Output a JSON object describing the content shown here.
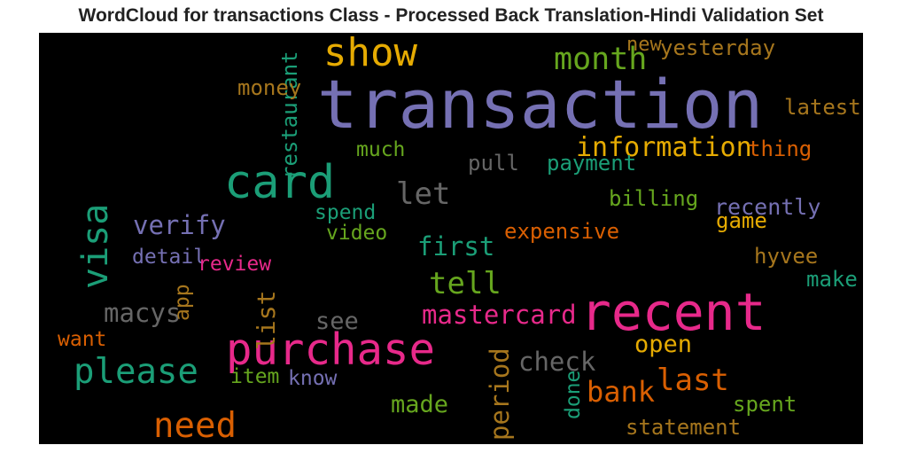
{
  "title": "WordCloud for transactions Class - Processed Back Translation-Hindi Validation Set",
  "chart_data": {
    "type": "wordcloud",
    "background": "#000000",
    "words": [
      {
        "text": "transaction",
        "weight": 1.0,
        "color": "#7570b3",
        "rotate": false
      },
      {
        "text": "recent",
        "weight": 0.72,
        "color": "#e7298a",
        "rotate": false
      },
      {
        "text": "card",
        "weight": 0.62,
        "color": "#1b9e77",
        "rotate": false
      },
      {
        "text": "purchase",
        "weight": 0.58,
        "color": "#e7298a",
        "rotate": false
      },
      {
        "text": "show",
        "weight": 0.5,
        "color": "#e6ab02",
        "rotate": false
      },
      {
        "text": "visa",
        "weight": 0.44,
        "color": "#1b9e77",
        "rotate": true
      },
      {
        "text": "please",
        "weight": 0.42,
        "color": "#1b9e77",
        "rotate": false
      },
      {
        "text": "need",
        "weight": 0.42,
        "color": "#d95f02",
        "rotate": false
      },
      {
        "text": "month",
        "weight": 0.36,
        "color": "#66a61e",
        "rotate": false
      },
      {
        "text": "let",
        "weight": 0.34,
        "color": "#666666",
        "rotate": false
      },
      {
        "text": "tell",
        "weight": 0.34,
        "color": "#66a61e",
        "rotate": false
      },
      {
        "text": "last",
        "weight": 0.34,
        "color": "#d95f02",
        "rotate": false
      },
      {
        "text": "bank",
        "weight": 0.32,
        "color": "#d95f02",
        "rotate": false
      },
      {
        "text": "information",
        "weight": 0.28,
        "color": "#e6ab02",
        "rotate": false
      },
      {
        "text": "first",
        "weight": 0.27,
        "color": "#1b9e77",
        "rotate": false
      },
      {
        "text": "verify",
        "weight": 0.27,
        "color": "#7570b3",
        "rotate": false
      },
      {
        "text": "macys",
        "weight": 0.27,
        "color": "#666666",
        "rotate": false
      },
      {
        "text": "mastercard",
        "weight": 0.26,
        "color": "#e7298a",
        "rotate": false
      },
      {
        "text": "check",
        "weight": 0.26,
        "color": "#666666",
        "rotate": false
      },
      {
        "text": "period",
        "weight": 0.26,
        "color": "#a6761d",
        "rotate": true
      },
      {
        "text": "list",
        "weight": 0.25,
        "color": "#a6761d",
        "rotate": true
      },
      {
        "text": "see",
        "weight": 0.24,
        "color": "#666666",
        "rotate": false
      },
      {
        "text": "open",
        "weight": 0.24,
        "color": "#e6ab02",
        "rotate": false
      },
      {
        "text": "made",
        "weight": 0.24,
        "color": "#66a61e",
        "rotate": false
      },
      {
        "text": "recently",
        "weight": 0.2,
        "color": "#7570b3",
        "rotate": false
      },
      {
        "text": "yesterday",
        "weight": 0.19,
        "color": "#a6761d",
        "rotate": false
      },
      {
        "text": "expensive",
        "weight": 0.19,
        "color": "#d95f02",
        "rotate": false
      },
      {
        "text": "latest",
        "weight": 0.19,
        "color": "#a6761d",
        "rotate": false
      },
      {
        "text": "restaurant",
        "weight": 0.19,
        "color": "#1b9e77",
        "rotate": true
      },
      {
        "text": "thing",
        "weight": 0.19,
        "color": "#d95f02",
        "rotate": false
      },
      {
        "text": "payment",
        "weight": 0.18,
        "color": "#1b9e77",
        "rotate": false
      },
      {
        "text": "pull",
        "weight": 0.18,
        "color": "#666666",
        "rotate": false
      },
      {
        "text": "billing",
        "weight": 0.18,
        "color": "#66a61e",
        "rotate": false
      },
      {
        "text": "game",
        "weight": 0.18,
        "color": "#e6ab02",
        "rotate": false
      },
      {
        "text": "hyvee",
        "weight": 0.18,
        "color": "#a6761d",
        "rotate": false
      },
      {
        "text": "make",
        "weight": 0.18,
        "color": "#1b9e77",
        "rotate": false
      },
      {
        "text": "statement",
        "weight": 0.18,
        "color": "#a6761d",
        "rotate": false
      },
      {
        "text": "spent",
        "weight": 0.18,
        "color": "#66a61e",
        "rotate": false
      },
      {
        "text": "money",
        "weight": 0.18,
        "color": "#a6761d",
        "rotate": false
      },
      {
        "text": "much",
        "weight": 0.17,
        "color": "#66a61e",
        "rotate": false
      },
      {
        "text": "spend",
        "weight": 0.17,
        "color": "#1b9e77",
        "rotate": false
      },
      {
        "text": "video",
        "weight": 0.17,
        "color": "#66a61e",
        "rotate": false
      },
      {
        "text": "detail",
        "weight": 0.17,
        "color": "#7570b3",
        "rotate": false
      },
      {
        "text": "review",
        "weight": 0.17,
        "color": "#e7298a",
        "rotate": false
      },
      {
        "text": "app",
        "weight": 0.17,
        "color": "#a6761d",
        "rotate": true
      },
      {
        "text": "want",
        "weight": 0.17,
        "color": "#d95f02",
        "rotate": false
      },
      {
        "text": "item",
        "weight": 0.17,
        "color": "#66a61e",
        "rotate": false
      },
      {
        "text": "know",
        "weight": 0.17,
        "color": "#7570b3",
        "rotate": false
      },
      {
        "text": "done",
        "weight": 0.17,
        "color": "#1b9e77",
        "rotate": true
      },
      {
        "text": "new",
        "weight": 0.16,
        "color": "#a6761d",
        "rotate": false
      }
    ]
  }
}
